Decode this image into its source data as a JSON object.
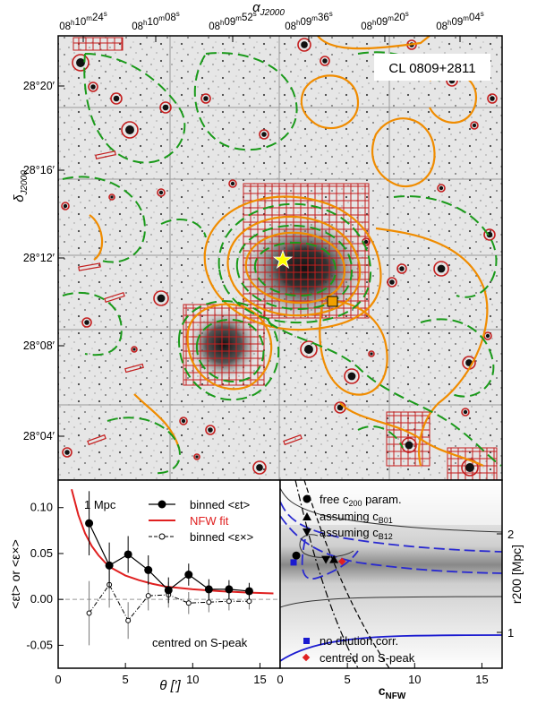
{
  "top_panel": {
    "ra_axis_label": "α",
    "ra_axis_sub": "J2000",
    "ra_ticks": [
      "08h10m24s",
      "08h10m08s",
      "08h09m52s",
      "08h09m36s",
      "08h09m20s",
      "08h09m04s"
    ],
    "dec_axis_label": "δ",
    "dec_axis_sub": "J2000",
    "dec_ticks": [
      "28°20′",
      "28°16′",
      "28°12′",
      "28°08′",
      "28°04′"
    ],
    "cluster_label": "CL 0809+2811",
    "colors": {
      "contour_orange": "#f08c00",
      "contour_green": "#1a9a1a",
      "grid_red": "#c41e1e",
      "star_yellow": "#ffff00",
      "square_orange": "#f0a000"
    }
  },
  "chart_data": [
    {
      "type": "scatter",
      "title": "",
      "xlabel": "θ [′]",
      "ylabel": "<εt> or <ε×>",
      "xlim": [
        0,
        16.5
      ],
      "ylim": [
        -0.075,
        0.13
      ],
      "x_ticks": [
        0,
        5,
        10,
        15
      ],
      "y_ticks": [
        "-0.05",
        "0.00",
        "0.05",
        "0.10"
      ],
      "scale_label": "1 Mpc",
      "note": "centred on S-peak",
      "legend": [
        "binned <εt>",
        "NFW fit",
        "binned <ε×>"
      ],
      "series": [
        {
          "name": "binned <εt>",
          "x": [
            2.3,
            3.8,
            5.2,
            6.7,
            8.2,
            9.7,
            11.2,
            12.7,
            14.2
          ],
          "y": [
            0.083,
            0.037,
            0.049,
            0.032,
            0.01,
            0.027,
            0.011,
            0.011,
            0.009
          ],
          "err": [
            0.035,
            0.025,
            0.02,
            0.016,
            0.014,
            0.012,
            0.011,
            0.01,
            0.009
          ]
        },
        {
          "name": "binned <ε×>",
          "x": [
            2.3,
            3.8,
            5.2,
            6.7,
            8.2,
            9.7,
            11.2,
            12.7,
            14.2
          ],
          "y": [
            -0.015,
            0.016,
            -0.023,
            0.004,
            0.005,
            -0.004,
            -0.003,
            -0.002,
            -0.002
          ],
          "err": [
            0.035,
            0.025,
            0.02,
            0.016,
            0.014,
            0.012,
            0.011,
            0.01,
            0.009
          ]
        },
        {
          "name": "NFW fit",
          "x": [
            1.0,
            1.5,
            2.0,
            2.5,
            3.0,
            3.5,
            4.0,
            5.0,
            6.0,
            7.0,
            8.0,
            10.0,
            12.0,
            14.0,
            16.0
          ],
          "y": [
            0.12,
            0.092,
            0.072,
            0.058,
            0.048,
            0.04,
            0.034,
            0.026,
            0.021,
            0.017,
            0.014,
            0.011,
            0.009,
            0.0075,
            0.0065
          ]
        }
      ]
    },
    {
      "type": "scatter",
      "title": "",
      "xlabel": "cNFW",
      "ylabel": "r200 [Mpc]",
      "xlim": [
        0,
        16.5
      ],
      "x_ticks": [
        0,
        5,
        10,
        15
      ],
      "y_ticks": [
        "1",
        "2"
      ],
      "legend": [
        "free c200 param.",
        "assuming cB01",
        "assuming cB12",
        "no dilution corr.",
        "centred on S-peak"
      ],
      "points": [
        {
          "name": "free c200 param.",
          "x": 1.2,
          "y": 1.78
        },
        {
          "name": "assuming cB01",
          "x": 4.0,
          "y": 1.74
        },
        {
          "name": "assuming cB12",
          "x": 3.4,
          "y": 1.74
        },
        {
          "name": "no dilution corr.",
          "x": 1.0,
          "y": 1.71
        },
        {
          "name": "centred on S-peak",
          "x": 4.6,
          "y": 1.72
        }
      ]
    }
  ]
}
